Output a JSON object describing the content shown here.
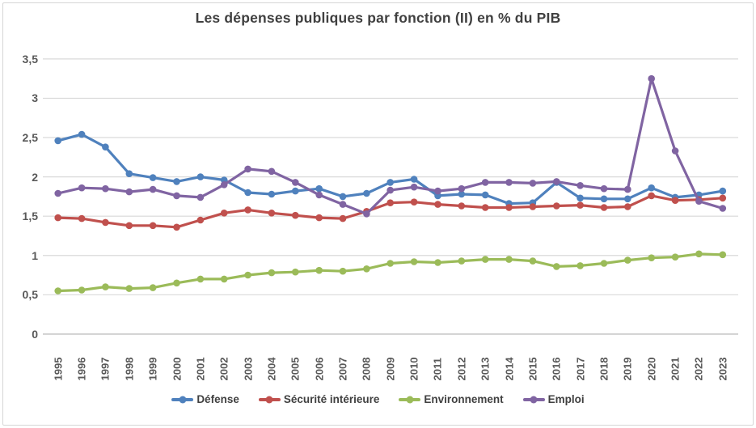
{
  "chart_data": {
    "type": "line",
    "title": "Les dépenses publiques par fonction (II) en % du PIB",
    "x": [
      "1995",
      "1996",
      "1997",
      "1998",
      "1999",
      "2000",
      "2001",
      "2002",
      "2003",
      "2004",
      "2005",
      "2006",
      "2007",
      "2008",
      "2009",
      "2010",
      "2011",
      "2012",
      "2013",
      "2014",
      "2015",
      "2016",
      "2017",
      "2018",
      "2019",
      "2020",
      "2021",
      "2022",
      "2023"
    ],
    "series": [
      {
        "name": "Défense",
        "color": "#4F81BD",
        "values": [
          2.46,
          2.54,
          2.38,
          2.04,
          1.99,
          1.94,
          2.0,
          1.96,
          1.8,
          1.78,
          1.82,
          1.85,
          1.75,
          1.79,
          1.93,
          1.97,
          1.76,
          1.78,
          1.77,
          1.66,
          1.67,
          1.93,
          1.73,
          1.72,
          1.72,
          1.86,
          1.74,
          1.77,
          1.82
        ]
      },
      {
        "name": "Sécurité intérieure",
        "color": "#C0504D",
        "values": [
          1.48,
          1.47,
          1.42,
          1.38,
          1.38,
          1.36,
          1.45,
          1.54,
          1.58,
          1.54,
          1.51,
          1.48,
          1.47,
          1.56,
          1.67,
          1.68,
          1.65,
          1.63,
          1.61,
          1.61,
          1.62,
          1.63,
          1.64,
          1.61,
          1.62,
          1.76,
          1.7,
          1.71,
          1.73
        ]
      },
      {
        "name": "Environnement",
        "color": "#9BBB59",
        "values": [
          0.55,
          0.56,
          0.6,
          0.58,
          0.59,
          0.65,
          0.7,
          0.7,
          0.75,
          0.78,
          0.79,
          0.81,
          0.8,
          0.83,
          0.9,
          0.92,
          0.91,
          0.93,
          0.95,
          0.95,
          0.93,
          0.86,
          0.87,
          0.9,
          0.94,
          0.97,
          0.98,
          1.02,
          1.01
        ]
      },
      {
        "name": "Emploi",
        "color": "#8064A2",
        "values": [
          1.79,
          1.86,
          1.85,
          1.81,
          1.84,
          1.76,
          1.74,
          1.9,
          2.1,
          2.07,
          1.93,
          1.77,
          1.65,
          1.53,
          1.83,
          1.87,
          1.82,
          1.85,
          1.93,
          1.93,
          1.92,
          1.94,
          1.89,
          1.85,
          1.84,
          3.25,
          2.33,
          1.69,
          1.6
        ]
      }
    ],
    "xlabel": "",
    "ylabel": "",
    "ylim": [
      0,
      3.5
    ],
    "yticks": [
      0,
      0.5,
      1,
      1.5,
      2,
      2.5,
      3,
      3.5
    ],
    "ytick_labels": [
      "0",
      "0,5",
      "1",
      "1,5",
      "2",
      "2,5",
      "3",
      "3,5"
    ],
    "grid": "horizontal",
    "legend_position": "bottom",
    "grid_color": "#D9D9D9",
    "axis_color": "#BFBFBF",
    "tick_color": "#595959",
    "title_color": "#404040"
  }
}
